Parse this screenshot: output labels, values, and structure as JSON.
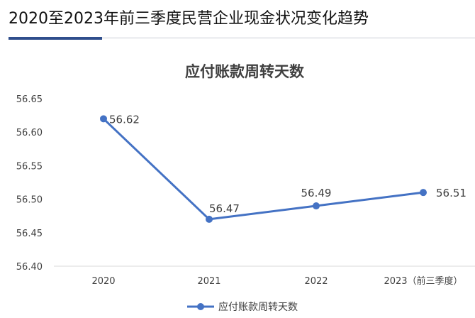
{
  "header": {
    "title": "2020至2023年前三季度民营企业现金状况变化趋势"
  },
  "colors": {
    "series": "#4472c4",
    "header_rule": "#2f4e8c",
    "gridline": "#d9d9d9"
  },
  "chart_data": {
    "type": "line",
    "title": "应付账款周转天数",
    "categories": [
      "2020",
      "2021",
      "2022",
      "2023（前三季度）"
    ],
    "series": [
      {
        "name": "应付账款周转天数",
        "values": [
          56.62,
          56.47,
          56.49,
          56.51
        ]
      }
    ],
    "data_labels": [
      "56.62",
      "56.47",
      "56.49",
      "56.51"
    ],
    "yticks": [
      "56.40",
      "56.45",
      "56.50",
      "56.55",
      "56.60",
      "56.65"
    ],
    "ylim": [
      56.4,
      56.65
    ],
    "grid": false,
    "legend_position": "bottom"
  }
}
